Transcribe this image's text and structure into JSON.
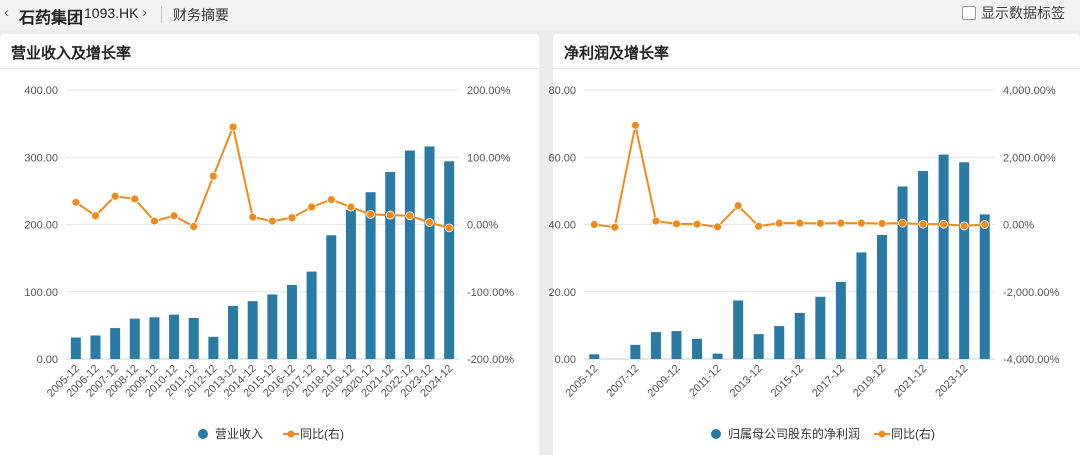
{
  "header": {
    "stock_name": "石药集团",
    "stock_code": "1093.HK",
    "section": "财务摘要",
    "prev_icon": "chevron-left-icon",
    "next_icon": "chevron-right-icon",
    "toggle_label": "显示数据标签",
    "toggle_checked": false
  },
  "colors": {
    "bar": "#2a7aa6",
    "line": "#f28a1a",
    "grid": "#e6e6e6"
  },
  "chart_data": [
    {
      "type": "bar",
      "title": "营业收入及增长率",
      "categories": [
        "2005-12",
        "2006-12",
        "2007-12",
        "2008-12",
        "2009-12",
        "2010-12",
        "2011-12",
        "2012-12",
        "2013-12",
        "2014-12",
        "2015-12",
        "2016-12",
        "2017-12",
        "2018-12",
        "2019-12",
        "2020-12",
        "2021-12",
        "2022-12",
        "2023-12",
        "2024-12"
      ],
      "x_tick_labels": [
        "2005-12",
        "2006-12",
        "2007-12",
        "2008-12",
        "2009-12",
        "2010-12",
        "2011-12",
        "2012-12",
        "2013-12",
        "2014-12",
        "2015-12",
        "2016-12",
        "2017-12",
        "2018-12",
        "2019-12",
        "2020-12",
        "2021-12",
        "2022-12",
        "2023-12",
        "2024-12"
      ],
      "series": [
        {
          "name": "营业收入",
          "axis": "left",
          "type": "bar",
          "values": [
            32,
            35,
            46,
            60,
            62,
            66,
            61,
            33,
            79,
            86,
            96,
            110,
            130,
            184,
            222,
            248,
            278,
            310,
            316,
            294
          ]
        },
        {
          "name": "同比(右)",
          "axis": "right",
          "type": "line",
          "values": [
            33,
            13,
            42,
            38,
            5,
            13,
            -3,
            72,
            145,
            11,
            5,
            10,
            26,
            37,
            26,
            15,
            14,
            13,
            3,
            -5
          ]
        }
      ],
      "y_left": {
        "min": 0,
        "max": 400,
        "ticks": [
          0,
          100,
          200,
          300,
          400
        ],
        "tick_labels": [
          "0.00",
          "100.00",
          "200.00",
          "300.00",
          "400.00"
        ]
      },
      "y_right": {
        "min": -200,
        "max": 200,
        "ticks": [
          -200,
          -100,
          0,
          100,
          200
        ],
        "tick_labels": [
          "-200.00%",
          "-100.00%",
          "0.00%",
          "100.00%",
          "200.00%"
        ]
      },
      "legend": [
        "营业收入",
        "同比(右)"
      ],
      "legend_position": "bottom-center"
    },
    {
      "type": "bar",
      "title": "净利润及增长率",
      "categories": [
        "2005-12",
        "2006-12",
        "2007-12",
        "2008-12",
        "2009-12",
        "2010-12",
        "2011-12",
        "2012-12",
        "2013-12",
        "2014-12",
        "2015-12",
        "2016-12",
        "2017-12",
        "2018-12",
        "2019-12",
        "2020-12",
        "2021-12",
        "2022-12",
        "2023-12",
        "2024-12"
      ],
      "x_tick_labels": [
        "2005-12",
        "",
        "2007-12",
        "",
        "2009-12",
        "",
        "2011-12",
        "",
        "2013-12",
        "",
        "2015-12",
        "",
        "2017-12",
        "",
        "2019-12",
        "",
        "2021-12",
        "",
        "2023-12",
        ""
      ],
      "series": [
        {
          "name": "归属母公司股东的净利润",
          "axis": "left",
          "type": "bar",
          "values": [
            1.4,
            0,
            4.2,
            8,
            8.3,
            6,
            1.6,
            17.4,
            7.4,
            9.8,
            13.7,
            18.5,
            22.9,
            31.7,
            36.9,
            51.3,
            55.9,
            60.8,
            58.5,
            43
          ]
        },
        {
          "name": "同比(右)",
          "axis": "right",
          "type": "line",
          "values": [
            0,
            -80,
            2950,
            100,
            20,
            10,
            -70,
            560,
            -50,
            40,
            40,
            35,
            40,
            40,
            30,
            40,
            10,
            10,
            -40,
            0
          ]
        }
      ],
      "y_left": {
        "min": 0,
        "max": 80,
        "ticks": [
          0,
          20,
          40,
          60,
          80
        ],
        "tick_labels": [
          "0.00",
          "20.00",
          "40.00",
          "60.00",
          "80.00"
        ]
      },
      "y_right": {
        "min": -4000,
        "max": 4000,
        "ticks": [
          -4000,
          -2000,
          0,
          2000,
          4000
        ],
        "tick_labels": [
          "-4,000.00%",
          "-2,000.00%",
          "0.00%",
          "2,000.00%",
          "4,000.00%"
        ]
      },
      "legend": [
        "归属母公司股东的净利润",
        "同比(右)"
      ],
      "legend_position": "bottom-center"
    }
  ]
}
